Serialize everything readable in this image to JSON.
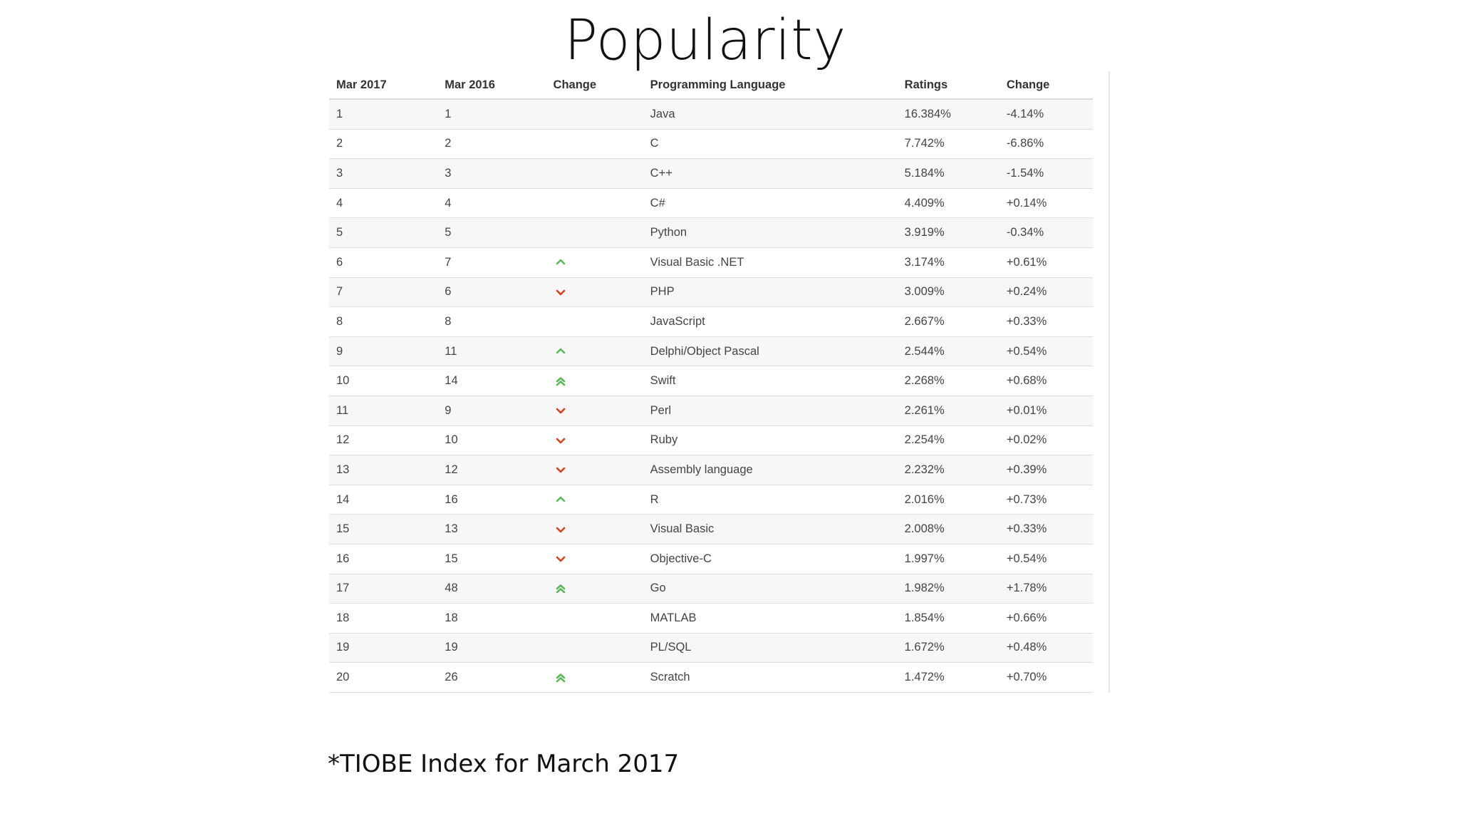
{
  "slide": {
    "title": "Popularity",
    "footnote": "*TIOBE Index for March 2017"
  },
  "table": {
    "headers": [
      "Mar 2017",
      "Mar 2016",
      "Change",
      "Programming Language",
      "Ratings",
      "Change"
    ],
    "rows": [
      {
        "rank_2017": "1",
        "rank_2016": "1",
        "trend": "none",
        "language": "Java",
        "rating": "16.384%",
        "change": "-4.14%"
      },
      {
        "rank_2017": "2",
        "rank_2016": "2",
        "trend": "none",
        "language": "C",
        "rating": "7.742%",
        "change": "-6.86%"
      },
      {
        "rank_2017": "3",
        "rank_2016": "3",
        "trend": "none",
        "language": "C++",
        "rating": "5.184%",
        "change": "-1.54%"
      },
      {
        "rank_2017": "4",
        "rank_2016": "4",
        "trend": "none",
        "language": "C#",
        "rating": "4.409%",
        "change": "+0.14%"
      },
      {
        "rank_2017": "5",
        "rank_2016": "5",
        "trend": "none",
        "language": "Python",
        "rating": "3.919%",
        "change": "-0.34%"
      },
      {
        "rank_2017": "6",
        "rank_2016": "7",
        "trend": "up",
        "language": "Visual Basic .NET",
        "rating": "3.174%",
        "change": "+0.61%"
      },
      {
        "rank_2017": "7",
        "rank_2016": "6",
        "trend": "down",
        "language": "PHP",
        "rating": "3.009%",
        "change": "+0.24%"
      },
      {
        "rank_2017": "8",
        "rank_2016": "8",
        "trend": "none",
        "language": "JavaScript",
        "rating": "2.667%",
        "change": "+0.33%"
      },
      {
        "rank_2017": "9",
        "rank_2016": "11",
        "trend": "up",
        "language": "Delphi/Object Pascal",
        "rating": "2.544%",
        "change": "+0.54%"
      },
      {
        "rank_2017": "10",
        "rank_2016": "14",
        "trend": "double-up",
        "language": "Swift",
        "rating": "2.268%",
        "change": "+0.68%"
      },
      {
        "rank_2017": "11",
        "rank_2016": "9",
        "trend": "down",
        "language": "Perl",
        "rating": "2.261%",
        "change": "+0.01%"
      },
      {
        "rank_2017": "12",
        "rank_2016": "10",
        "trend": "down",
        "language": "Ruby",
        "rating": "2.254%",
        "change": "+0.02%"
      },
      {
        "rank_2017": "13",
        "rank_2016": "12",
        "trend": "down",
        "language": "Assembly language",
        "rating": "2.232%",
        "change": "+0.39%"
      },
      {
        "rank_2017": "14",
        "rank_2016": "16",
        "trend": "up",
        "language": "R",
        "rating": "2.016%",
        "change": "+0.73%"
      },
      {
        "rank_2017": "15",
        "rank_2016": "13",
        "trend": "down",
        "language": "Visual Basic",
        "rating": "2.008%",
        "change": "+0.33%"
      },
      {
        "rank_2017": "16",
        "rank_2016": "15",
        "trend": "down",
        "language": "Objective-C",
        "rating": "1.997%",
        "change": "+0.54%"
      },
      {
        "rank_2017": "17",
        "rank_2016": "48",
        "trend": "double-up",
        "language": "Go",
        "rating": "1.982%",
        "change": "+1.78%"
      },
      {
        "rank_2017": "18",
        "rank_2016": "18",
        "trend": "none",
        "language": "MATLAB",
        "rating": "1.854%",
        "change": "+0.66%"
      },
      {
        "rank_2017": "19",
        "rank_2016": "19",
        "trend": "none",
        "language": "PL/SQL",
        "rating": "1.672%",
        "change": "+0.48%"
      },
      {
        "rank_2017": "20",
        "rank_2016": "26",
        "trend": "double-up",
        "language": "Scratch",
        "rating": "1.472%",
        "change": "+0.70%"
      }
    ]
  },
  "colors": {
    "up": "#5cb85c",
    "down": "#d9401e",
    "row_stripe": "#f7f7f7",
    "text": "#444444"
  },
  "icons": {
    "up": "chevron-up-icon",
    "down": "chevron-down-icon",
    "double-up": "double-chevron-up-icon"
  }
}
